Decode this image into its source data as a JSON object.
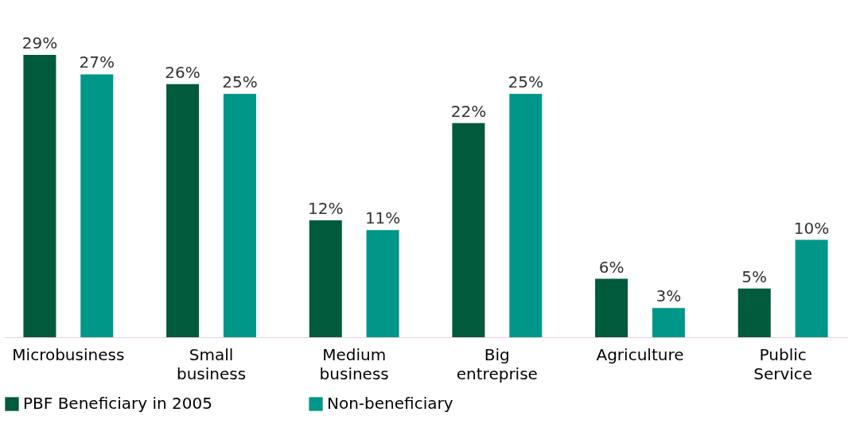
{
  "chart_data": {
    "type": "bar",
    "categories": [
      "Microbusiness",
      "Small business",
      "Medium business",
      "Big entreprise",
      "Agriculture",
      "Public Service"
    ],
    "series": [
      {
        "name": "PBF Beneficiary in 2005",
        "color": "#005a3c",
        "values": [
          29,
          26,
          12,
          22,
          6,
          5
        ],
        "value_labels": [
          "29%",
          "26%",
          "12%",
          "22%",
          "6%",
          "5%"
        ]
      },
      {
        "name": "Non-beneficiary",
        "color": "#009688",
        "values": [
          27,
          25,
          11,
          25,
          3,
          10
        ],
        "value_labels": [
          "27%",
          "25%",
          "11%",
          "25%",
          "3%",
          "10%"
        ]
      }
    ],
    "legend": "bottom",
    "grid": false
  }
}
